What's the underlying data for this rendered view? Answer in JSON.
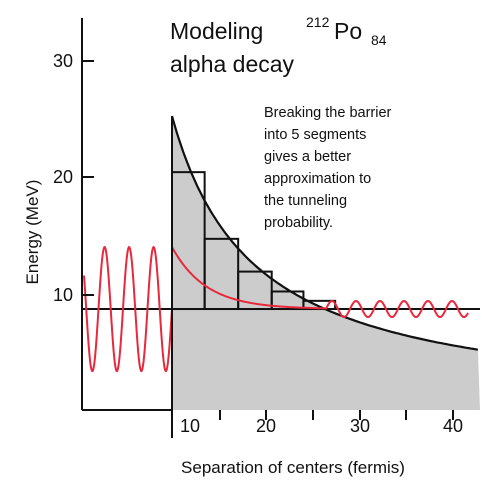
{
  "title": {
    "prefix": "Modeling",
    "mass_number": "212",
    "element": "Po",
    "atomic_number": "84",
    "line2": "alpha decay"
  },
  "note_lines": [
    "Breaking the barrier",
    "into 5 segments",
    "gives a better",
    "approximation to",
    "the tunneling",
    "probability."
  ],
  "y_axis": {
    "label": "Energy (MeV)",
    "ticks": [
      "10",
      "20",
      "30"
    ]
  },
  "x_axis": {
    "label": "Separation of centers (fermis)",
    "ticks": [
      "10",
      "20",
      "30",
      "40"
    ]
  },
  "colors": {
    "barrier_fill": "#cccccc",
    "wave": "#e8283c",
    "line": "#111111"
  },
  "model": {
    "nuclear_radius_fm": 9,
    "alpha_energy_MeV": 8.8,
    "barrier_peak_MeV": 25.3,
    "segments": [
      {
        "x0": 9,
        "x1": 12.6,
        "height": 20.5
      },
      {
        "x0": 12.6,
        "x1": 16.3,
        "height": 14.8
      },
      {
        "x0": 16.3,
        "x1": 20,
        "height": 12
      },
      {
        "x0": 20,
        "x1": 23.5,
        "height": 10.3
      },
      {
        "x0": 23.5,
        "x1": 27,
        "height": 9.5
      }
    ]
  }
}
